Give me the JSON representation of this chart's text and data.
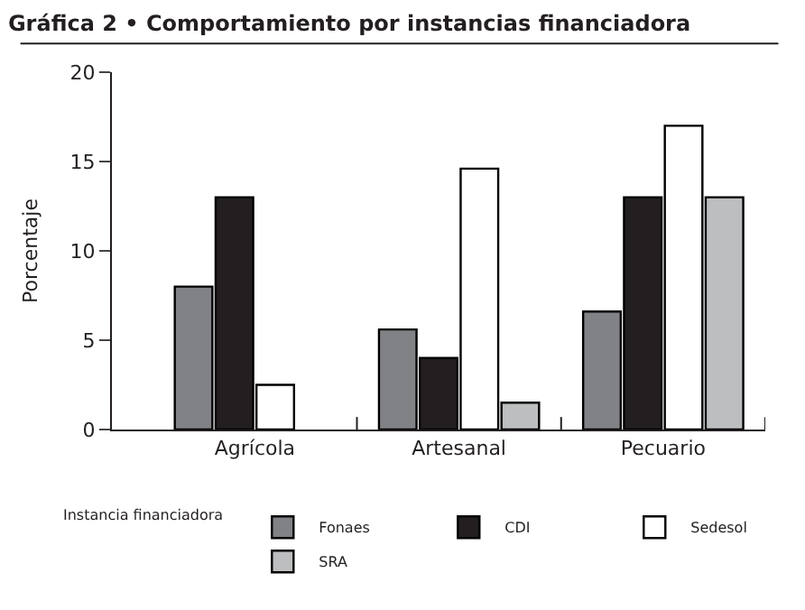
{
  "chart_data": {
    "type": "bar",
    "title": "Gráfica 2 • Comportamiento por instancias financiadora",
    "ylabel": "Porcentaje",
    "legend_title": "Instancia financiadora",
    "categories": [
      "Agrícola",
      "Artesanal",
      "Pecuario"
    ],
    "series": [
      {
        "name": "Fonaes",
        "color": "#808285",
        "values": [
          8,
          5.6,
          6.6
        ]
      },
      {
        "name": "CDI",
        "color": "#231f20",
        "values": [
          13,
          4,
          13
        ]
      },
      {
        "name": "Sedesol",
        "color": "#ffffff",
        "values": [
          2.5,
          14.6,
          17
        ]
      },
      {
        "name": "SRA",
        "color": "#bcbec0",
        "values": [
          null,
          1.5,
          13
        ]
      }
    ],
    "ylim": [
      0,
      20
    ],
    "yticks": [
      0,
      5,
      10,
      15,
      20
    ],
    "legend": "bottom"
  }
}
